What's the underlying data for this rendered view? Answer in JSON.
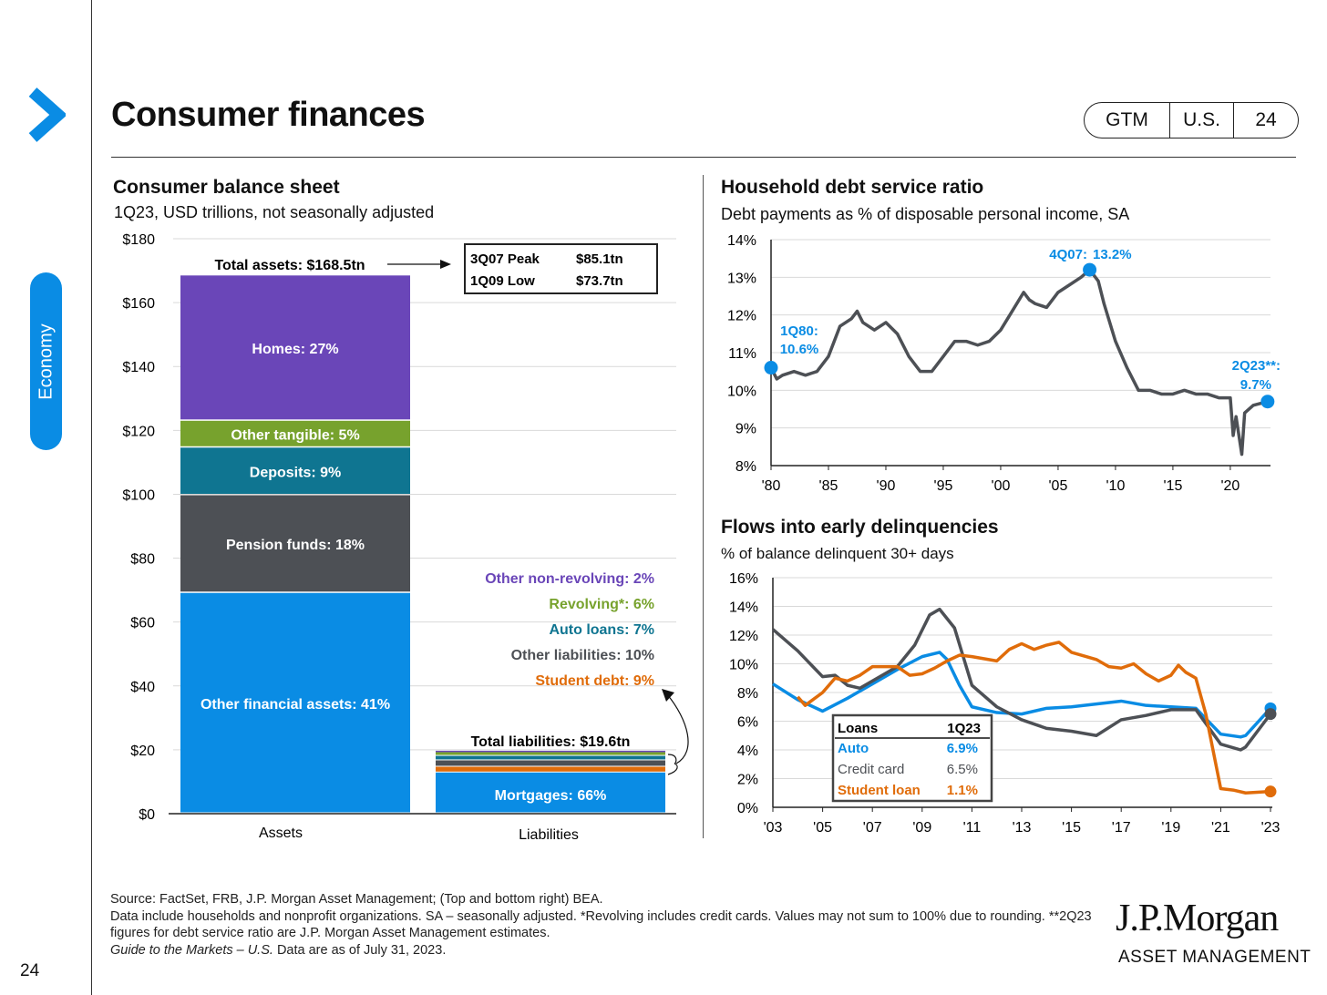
{
  "sidebar": {
    "section": "Economy",
    "page_number": "24"
  },
  "header": {
    "title": "Consumer finances",
    "badge": [
      "GTM",
      "U.S.",
      "24"
    ]
  },
  "colors": {
    "blue": "#0a8ce4",
    "gray": "#4d5055",
    "orange": "#e06c0a",
    "teal": "#0f7591",
    "green": "#77a22d",
    "purple": "#6a46b8"
  },
  "footer": {
    "source": "Source: FactSet, FRB, J.P. Morgan Asset Management; (Top and bottom right) BEA.",
    "note1": "Data include households and nonprofit organizations. SA – seasonally adjusted. *Revolving includes credit cards. Values may not sum to 100% due to rounding. **2Q23 figures for debt service ratio are J.P. Morgan Asset Management estimates.",
    "guide_title": "Guide to the Markets – U.S.",
    "asof": " Data are as of July 31, 2023."
  },
  "logo": {
    "name": "J.P.Morgan",
    "sub": "ASSET MANAGEMENT"
  },
  "chart_data": [
    {
      "type": "bar",
      "title": "Consumer balance sheet",
      "subtitle": "1Q23, USD trillions, not seasonally adjusted",
      "categories": [
        "Assets",
        "Liabilities"
      ],
      "ylim": [
        0,
        180
      ],
      "yticks": [
        "$0",
        "$20",
        "$40",
        "$60",
        "$80",
        "$100",
        "$120",
        "$140",
        "$160",
        "$180"
      ],
      "assets": [
        {
          "label": "Other financial assets: 41%",
          "value": 69.1,
          "color": "#0a8ce4"
        },
        {
          "label": "Pension funds: 18%",
          "value": 30.6,
          "color": "#4d5055"
        },
        {
          "label": "Deposits: 9%",
          "value": 14.9,
          "color": "#0f7591"
        },
        {
          "label": "Other tangible: 5%",
          "value": 8.4,
          "color": "#77a22d"
        },
        {
          "label": "Homes: 27%",
          "value": 45.5,
          "color": "#6a46b8"
        }
      ],
      "liabilities": [
        {
          "label": "Mortgages: 66%",
          "value": 12.9,
          "color": "#0a8ce4"
        },
        {
          "label": "Student debt: 9%",
          "value": 1.8,
          "color": "#e06c0a"
        },
        {
          "label": "Other liabilities: 10%",
          "value": 2.0,
          "color": "#4d5055"
        },
        {
          "label": "Auto loans: 7%",
          "value": 1.4,
          "color": "#0f7591"
        },
        {
          "label": "Revolving*: 6%",
          "value": 1.2,
          "color": "#77a22d"
        },
        {
          "label": "Other non-revolving: 2%",
          "value": 0.4,
          "color": "#6a46b8"
        }
      ],
      "annotations": {
        "total_assets": "Total assets: $168.5tn",
        "total_liabilities": "Total liabilities: $19.6tn",
        "peak_label": "3Q07 Peak",
        "peak_value": "$85.1tn",
        "low_label": "1Q09 Low",
        "low_value": "$73.7tn"
      }
    },
    {
      "type": "line",
      "title": "Household debt service ratio",
      "subtitle": "Debt payments as % of disposable personal income, SA",
      "ylim": [
        8,
        14
      ],
      "yticks": [
        "8%",
        "9%",
        "10%",
        "11%",
        "12%",
        "13%",
        "14%"
      ],
      "xlim": [
        1980,
        2023.5
      ],
      "xticks": [
        [
          1980,
          "'80"
        ],
        [
          1985,
          "'85"
        ],
        [
          1990,
          "'90"
        ],
        [
          1995,
          "'95"
        ],
        [
          2000,
          "'00"
        ],
        [
          2005,
          "'05"
        ],
        [
          2010,
          "'10"
        ],
        [
          2015,
          "'15"
        ],
        [
          2020,
          "'20"
        ]
      ],
      "series": [
        {
          "name": "Debt service ratio",
          "color": "#4d5055",
          "points": [
            [
              1980,
              10.6
            ],
            [
              1980.5,
              10.3
            ],
            [
              1981,
              10.4
            ],
            [
              1982,
              10.5
            ],
            [
              1983,
              10.4
            ],
            [
              1984,
              10.5
            ],
            [
              1985,
              10.9
            ],
            [
              1986,
              11.7
            ],
            [
              1987,
              11.9
            ],
            [
              1987.5,
              12.1
            ],
            [
              1988,
              11.8
            ],
            [
              1989,
              11.6
            ],
            [
              1990,
              11.8
            ],
            [
              1991,
              11.5
            ],
            [
              1992,
              10.9
            ],
            [
              1993,
              10.5
            ],
            [
              1994,
              10.5
            ],
            [
              1995,
              10.9
            ],
            [
              1996,
              11.3
            ],
            [
              1997,
              11.3
            ],
            [
              1998,
              11.2
            ],
            [
              1999,
              11.3
            ],
            [
              2000,
              11.6
            ],
            [
              2001,
              12.1
            ],
            [
              2002,
              12.6
            ],
            [
              2002.5,
              12.4
            ],
            [
              2003,
              12.3
            ],
            [
              2004,
              12.2
            ],
            [
              2005,
              12.6
            ],
            [
              2006,
              12.8
            ],
            [
              2007,
              13.0
            ],
            [
              2007.75,
              13.2
            ],
            [
              2008.5,
              12.9
            ],
            [
              2009,
              12.3
            ],
            [
              2010,
              11.3
            ],
            [
              2011,
              10.6
            ],
            [
              2012,
              10.0
            ],
            [
              2013,
              10.0
            ],
            [
              2014,
              9.9
            ],
            [
              2015,
              9.9
            ],
            [
              2016,
              10.0
            ],
            [
              2017,
              9.9
            ],
            [
              2018,
              9.9
            ],
            [
              2019,
              9.8
            ],
            [
              2020,
              9.8
            ],
            [
              2020.25,
              8.8
            ],
            [
              2020.5,
              9.3
            ],
            [
              2021,
              8.3
            ],
            [
              2021.25,
              9.4
            ],
            [
              2022,
              9.6
            ],
            [
              2023.25,
              9.7
            ]
          ]
        }
      ],
      "markers": [
        {
          "x": 1980,
          "y": 10.6,
          "label": "1Q80:",
          "value": "10.6%"
        },
        {
          "x": 2007.75,
          "y": 13.2,
          "label": "4Q07:",
          "value": "13.2%"
        },
        {
          "x": 2023.25,
          "y": 9.7,
          "label": "2Q23**:",
          "value": "9.7%"
        }
      ]
    },
    {
      "type": "line",
      "title": "Flows into early delinquencies",
      "subtitle": "% of balance delinquent 30+ days",
      "ylim": [
        0,
        16
      ],
      "yticks": [
        "0%",
        "2%",
        "4%",
        "6%",
        "8%",
        "10%",
        "12%",
        "14%",
        "16%"
      ],
      "xlim": [
        2003,
        2023
      ],
      "xticks": [
        [
          2003,
          "'03"
        ],
        [
          2005,
          "'05"
        ],
        [
          2007,
          "'07"
        ],
        [
          2009,
          "'09"
        ],
        [
          2011,
          "'11"
        ],
        [
          2013,
          "'13"
        ],
        [
          2015,
          "'15"
        ],
        [
          2017,
          "'17"
        ],
        [
          2019,
          "'19"
        ],
        [
          2021,
          "'21"
        ],
        [
          2023,
          "'23"
        ]
      ],
      "legend": {
        "header": [
          "Loans",
          "1Q23"
        ],
        "placement": "bottom-left"
      },
      "series": [
        {
          "name": "Auto",
          "value": "6.9%",
          "color": "#0a8ce4",
          "points": [
            [
              2003,
              8.6
            ],
            [
              2004,
              7.5
            ],
            [
              2005,
              6.7
            ],
            [
              2006,
              7.6
            ],
            [
              2007,
              8.6
            ],
            [
              2008,
              9.6
            ],
            [
              2009,
              10.5
            ],
            [
              2009.7,
              10.8
            ],
            [
              2010,
              10.3
            ],
            [
              2010.5,
              8.5
            ],
            [
              2011,
              7.0
            ],
            [
              2012,
              6.6
            ],
            [
              2013,
              6.5
            ],
            [
              2014,
              6.9
            ],
            [
              2015,
              7.0
            ],
            [
              2016,
              7.2
            ],
            [
              2017,
              7.4
            ],
            [
              2018,
              7.1
            ],
            [
              2019,
              7.0
            ],
            [
              2020,
              6.9
            ],
            [
              2021,
              5.1
            ],
            [
              2021.8,
              4.9
            ],
            [
              2022,
              5.0
            ],
            [
              2023,
              6.9
            ]
          ]
        },
        {
          "name": "Credit card",
          "value": "6.5%",
          "color": "#4d5055",
          "points": [
            [
              2003,
              12.4
            ],
            [
              2004,
              10.9
            ],
            [
              2005,
              9.1
            ],
            [
              2005.5,
              9.2
            ],
            [
              2006,
              8.5
            ],
            [
              2006.5,
              8.3
            ],
            [
              2007,
              8.8
            ],
            [
              2008,
              9.8
            ],
            [
              2008.7,
              11.3
            ],
            [
              2009.3,
              13.4
            ],
            [
              2009.7,
              13.8
            ],
            [
              2010.3,
              12.5
            ],
            [
              2011,
              8.5
            ],
            [
              2012,
              7.0
            ],
            [
              2013,
              6.1
            ],
            [
              2014,
              5.5
            ],
            [
              2015,
              5.3
            ],
            [
              2016,
              5.0
            ],
            [
              2017,
              6.1
            ],
            [
              2018,
              6.4
            ],
            [
              2019,
              6.8
            ],
            [
              2020,
              6.8
            ],
            [
              2021,
              4.4
            ],
            [
              2021.8,
              4.0
            ],
            [
              2022,
              4.2
            ],
            [
              2023,
              6.5
            ]
          ]
        },
        {
          "name": "Student loan",
          "value": "1.1%",
          "color": "#e06c0a",
          "points": [
            [
              2004,
              7.7
            ],
            [
              2004.3,
              7.1
            ],
            [
              2005,
              8.0
            ],
            [
              2005.5,
              9.0
            ],
            [
              2006,
              8.8
            ],
            [
              2006.5,
              9.2
            ],
            [
              2007,
              9.8
            ],
            [
              2008,
              9.8
            ],
            [
              2008.5,
              9.2
            ],
            [
              2009,
              9.3
            ],
            [
              2009.5,
              9.7
            ],
            [
              2010,
              10.2
            ],
            [
              2010.5,
              10.6
            ],
            [
              2011,
              10.5
            ],
            [
              2012,
              10.2
            ],
            [
              2012.5,
              11.0
            ],
            [
              2013,
              11.4
            ],
            [
              2013.5,
              11.0
            ],
            [
              2014,
              11.3
            ],
            [
              2014.5,
              11.5
            ],
            [
              2015,
              10.8
            ],
            [
              2016,
              10.3
            ],
            [
              2016.5,
              9.8
            ],
            [
              2017,
              9.7
            ],
            [
              2017.5,
              10.0
            ],
            [
              2018,
              9.3
            ],
            [
              2018.5,
              8.8
            ],
            [
              2019,
              9.2
            ],
            [
              2019.3,
              9.9
            ],
            [
              2019.6,
              9.4
            ],
            [
              2020,
              9.0
            ],
            [
              2020.4,
              6.5
            ],
            [
              2021,
              1.3
            ],
            [
              2021.5,
              1.2
            ],
            [
              2022,
              1.0
            ],
            [
              2023,
              1.1
            ]
          ]
        }
      ]
    }
  ]
}
